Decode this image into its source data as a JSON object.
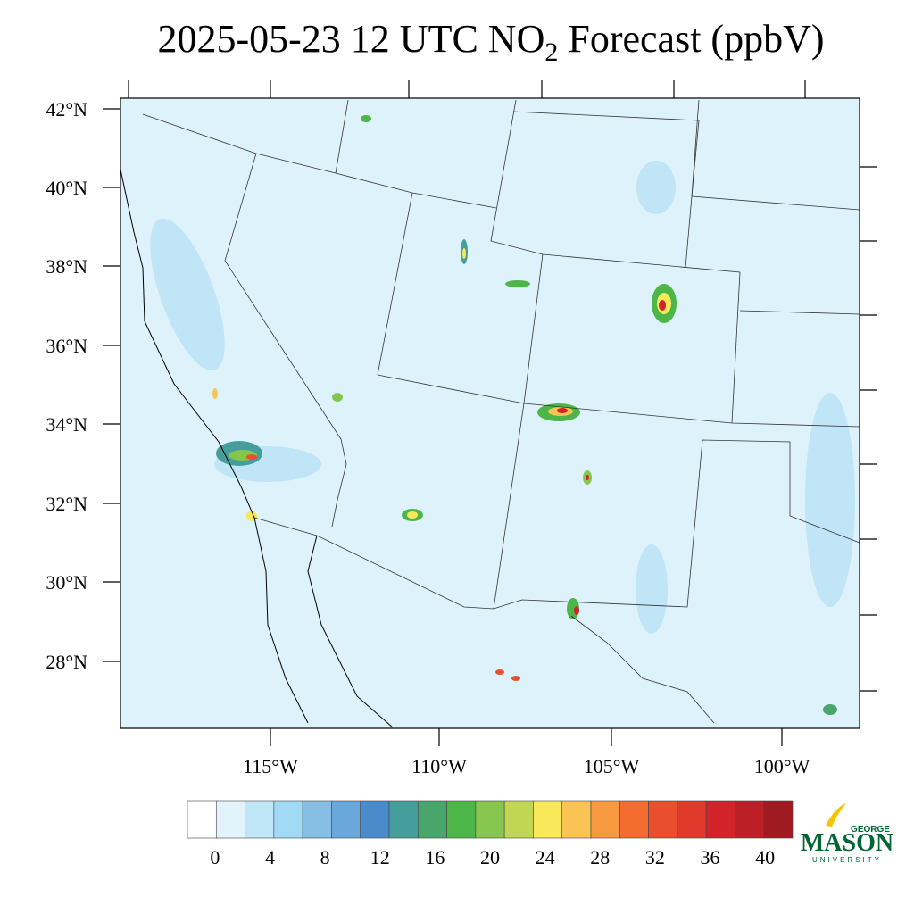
{
  "title": [
    "2025-05-23 12 UTC NO",
    "2",
    " Forecast (ppbV)"
  ],
  "lat_labels": [
    "42°N",
    "40°N",
    "38°N",
    "36°N",
    "34°N",
    "32°N",
    "30°N",
    "28°N"
  ],
  "lon_labels": [
    "115°W",
    "110°W",
    "105°W",
    "100°W"
  ],
  "colorbar": {
    "lim": [
      -2,
      42
    ],
    "ticks": [
      0,
      4,
      8,
      12,
      16,
      20,
      24,
      28,
      32,
      36,
      40
    ],
    "colors": [
      "#ffffff",
      "#e1f3fb",
      "#c0e7f8",
      "#a0daf5",
      "#86bfe3",
      "#6aa8dc",
      "#4a8ccb",
      "#459e9c",
      "#48a66b",
      "#4cb748",
      "#86c64f",
      "#c1d653",
      "#f7e95a",
      "#f9c453",
      "#f7993f",
      "#f36c30",
      "#e94e2d",
      "#df3a2b",
      "#d2232a",
      "#bd1f27",
      "#a01a21"
    ]
  },
  "logo": [
    "GEORGE",
    "MASON",
    "UNIVERSITY"
  ]
}
